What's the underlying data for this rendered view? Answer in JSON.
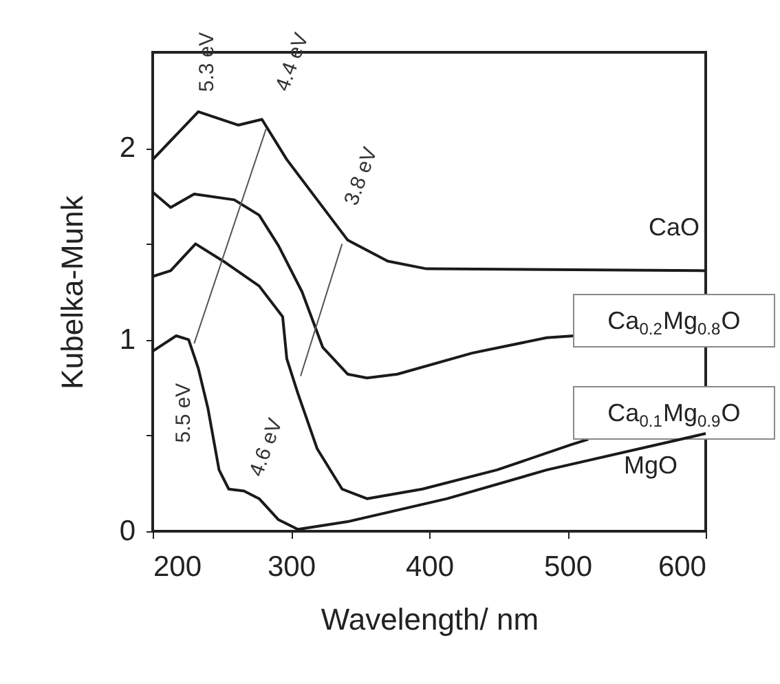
{
  "chart_data": {
    "type": "line",
    "xlabel": "Wavelength/ nm",
    "ylabel": "Kubelka-Munk",
    "xlim": [
      200,
      600
    ],
    "ylim": [
      0,
      2.5
    ],
    "xticks": [
      200,
      300,
      400,
      500,
      600
    ],
    "yticks": [
      {
        "value": 0,
        "label": "0"
      },
      {
        "value": 0.5,
        "label": null
      },
      {
        "value": 1,
        "label": "1"
      },
      {
        "value": 1.5,
        "label": null
      },
      {
        "value": 2,
        "label": "2"
      }
    ],
    "grid": false,
    "marker": "none",
    "line_style": "solid",
    "series": [
      {
        "name": "CaO",
        "color": "#1a1a1a",
        "x": [
          200,
          233,
          262,
          279,
          297,
          319,
          341,
          370,
          398,
          600
        ],
        "values": [
          1.94,
          2.19,
          2.12,
          2.15,
          1.94,
          1.73,
          1.52,
          1.41,
          1.37,
          1.36
        ]
      },
      {
        "name": "Ca$_{0.2}$Mg$_{0.8}$O",
        "color": "#1a1a1a",
        "x": [
          200,
          213,
          230,
          259,
          277,
          291,
          308,
          323,
          341,
          355,
          377,
          431,
          485,
          505
        ],
        "values": [
          1.77,
          1.69,
          1.76,
          1.73,
          1.65,
          1.49,
          1.25,
          0.96,
          0.82,
          0.8,
          0.82,
          0.93,
          1.01,
          1.02
        ]
      },
      {
        "name": "Ca$_{0.1}$Mg$_{0.9}$O",
        "color": "#1a1a1a",
        "x": [
          200,
          213,
          231,
          251,
          277,
          294,
          297,
          305,
          319,
          337,
          355,
          395,
          449,
          502,
          515
        ],
        "values": [
          1.33,
          1.36,
          1.5,
          1.41,
          1.28,
          1.12,
          0.9,
          0.72,
          0.43,
          0.22,
          0.17,
          0.22,
          0.32,
          0.45,
          0.48
        ]
      },
      {
        "name": "MgO",
        "color": "#1a1a1a",
        "x": [
          200,
          217,
          226,
          233,
          240,
          248,
          255,
          266,
          277,
          291,
          305,
          341,
          413,
          485,
          600
        ],
        "values": [
          0.94,
          1.02,
          1.0,
          0.85,
          0.64,
          0.32,
          0.22,
          0.21,
          0.17,
          0.06,
          0.01,
          0.05,
          0.17,
          0.32,
          0.51
        ]
      },
      {
        "type": "line",
        "color": "#555555",
        "x": [
          230,
          282
        ],
        "values": [
          0.98,
          2.1
        ]
      },
      {
        "type": "line",
        "color": "#555555",
        "x": [
          307,
          337
        ],
        "values": [
          0.81,
          1.5
        ]
      }
    ],
    "annotations": [
      "5.3 eV",
      "4.4 eV",
      "3.8 eV",
      "5.5 eV",
      "4.6 eV"
    ]
  }
}
